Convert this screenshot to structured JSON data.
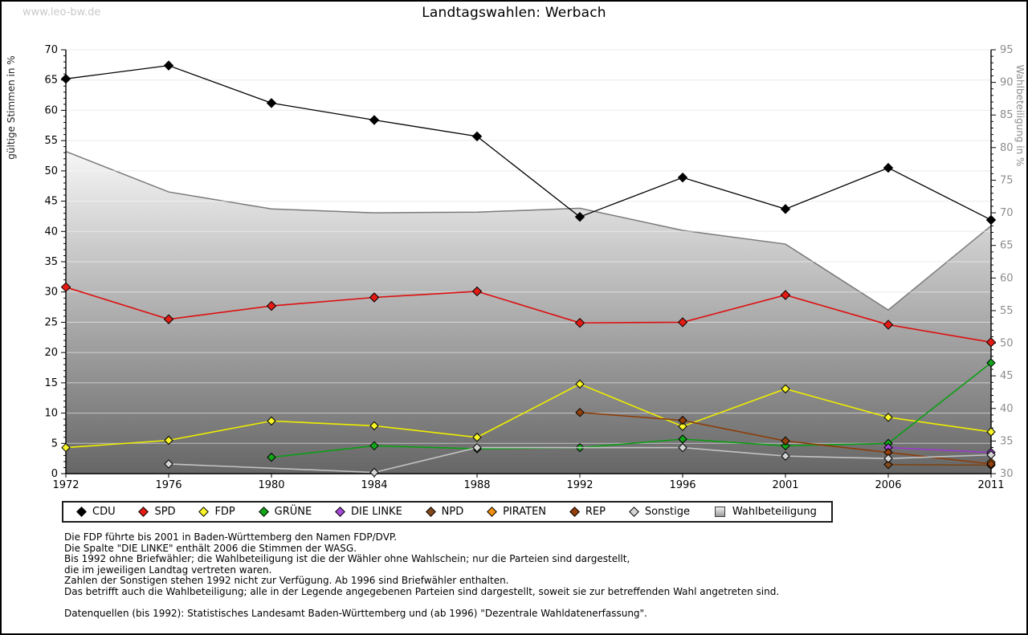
{
  "window": {
    "title": "Landtagswahlen: Werbach",
    "watermark": "www.leo-bw.de"
  },
  "chart_data": {
    "type": "line",
    "title": "Landtagswahlen: Werbach",
    "categories": [
      "1972",
      "1976",
      "1980",
      "1984",
      "1988",
      "1992",
      "1996",
      "2001",
      "2006",
      "2011"
    ],
    "left_axis": {
      "label": "gültige Stimmen in %",
      "min": 0,
      "max": 70,
      "major_step": 5,
      "minor_step": 1
    },
    "right_axis": {
      "label": "Wahlbeteiligung in %",
      "min": 30,
      "max": 95,
      "major_step": 5,
      "minor_step": 1
    },
    "grid": true,
    "legend_position": "bottom",
    "series": [
      {
        "name": "CDU",
        "color": "#000000",
        "marker_fill": "#000000",
        "values": [
          65.2,
          67.4,
          61.2,
          58.4,
          55.7,
          42.4,
          48.9,
          43.7,
          50.5,
          41.9
        ]
      },
      {
        "name": "SPD",
        "color": "#dd0f0f",
        "marker_fill": "#e31b14",
        "values": [
          30.8,
          25.5,
          27.7,
          29.1,
          30.1,
          24.9,
          25.0,
          29.5,
          24.6,
          21.7
        ]
      },
      {
        "name": "FDP",
        "color": "#eeee00",
        "marker_fill": "#f9f627",
        "values": [
          4.3,
          5.5,
          8.7,
          7.9,
          6.0,
          14.8,
          7.8,
          14.0,
          9.3,
          6.9
        ]
      },
      {
        "name": "GRÜNE",
        "color": "#0b9e14",
        "marker_fill": "#12a71a",
        "values": [
          null,
          null,
          2.7,
          4.6,
          4.1,
          4.3,
          5.7,
          4.6,
          5.0,
          18.3
        ]
      },
      {
        "name": "DIE LINKE",
        "color": "#9a3ccc",
        "marker_fill": "#a44ad6",
        "values": [
          null,
          null,
          null,
          null,
          null,
          null,
          null,
          null,
          4.3,
          3.5
        ]
      },
      {
        "name": "NPD",
        "color": "#7c4517",
        "marker_fill": "#84491a",
        "values": [
          null,
          null,
          null,
          null,
          null,
          null,
          null,
          null,
          1.5,
          1.4
        ]
      },
      {
        "name": "PIRATEN",
        "color": "#ec8a0e",
        "marker_fill": "#f08f12",
        "values": [
          null,
          null,
          null,
          null,
          null,
          null,
          null,
          null,
          null,
          1.9
        ]
      },
      {
        "name": "REP",
        "color": "#8d3c05",
        "marker_fill": "#94400a",
        "values": [
          null,
          null,
          null,
          null,
          null,
          10.1,
          8.8,
          5.4,
          3.5,
          1.6
        ]
      },
      {
        "name": "Sonstige",
        "color": "#c4c4c4",
        "marker_fill": "#d4d4d4",
        "values": [
          null,
          1.6,
          null,
          0.2,
          4.3,
          null,
          4.3,
          2.9,
          2.5,
          3.1
        ]
      }
    ],
    "turnout_series": {
      "name": "Wahlbeteiligung",
      "axis": "right",
      "style": "area",
      "stroke": "#7a7a7a",
      "fill_top": "#f6f6f6",
      "fill_bottom": "#666666",
      "values": [
        79.4,
        73.2,
        70.6,
        70.0,
        70.1,
        70.7,
        67.3,
        65.2,
        55.1,
        68.0
      ]
    },
    "legend": [
      {
        "label": "CDU",
        "shape": "diamond",
        "color": "#000000"
      },
      {
        "label": "SPD",
        "shape": "diamond",
        "color": "#e31b14"
      },
      {
        "label": "FDP",
        "shape": "diamond",
        "color": "#f9f627"
      },
      {
        "label": "GRÜNE",
        "shape": "diamond",
        "color": "#12a71a"
      },
      {
        "label": "DIE LINKE",
        "shape": "diamond",
        "color": "#a44ad6"
      },
      {
        "label": "NPD",
        "shape": "diamond",
        "color": "#84491a"
      },
      {
        "label": "PIRATEN",
        "shape": "diamond",
        "color": "#f08f12"
      },
      {
        "label": "REP",
        "shape": "diamond",
        "color": "#94400a"
      },
      {
        "label": "Sonstige",
        "shape": "diamond",
        "color": "#d4d4d4"
      },
      {
        "label": "Wahlbeteiligung",
        "shape": "square",
        "color": "#bdbdbd"
      }
    ]
  },
  "footnotes": {
    "lines": [
      "Die FDP führte bis 2001 in Baden-Württemberg den Namen FDP/DVP.",
      "Die Spalte \"DIE LINKE\" enthält 2006 die Stimmen der WASG.",
      "Bis 1992 ohne Briefwähler; die Wahlbeteiligung ist die der Wähler ohne Wahlschein; nur die Parteien sind dargestellt,",
      "die im jeweiligen Landtag vertreten waren.",
      "Zahlen der Sonstigen stehen 1992 nicht zur Verfügung. Ab 1996 sind Briefwähler enthalten.",
      "Das betrifft auch die Wahlbeteiligung; alle in der Legende angegebenen Parteien sind dargestellt, soweit sie zur betreffenden Wahl angetreten sind.",
      "",
      "Datenquellen (bis 1992): Statistisches Landesamt Baden-Württemberg und (ab 1996) \"Dezentrale Wahldatenerfassung\"."
    ]
  }
}
